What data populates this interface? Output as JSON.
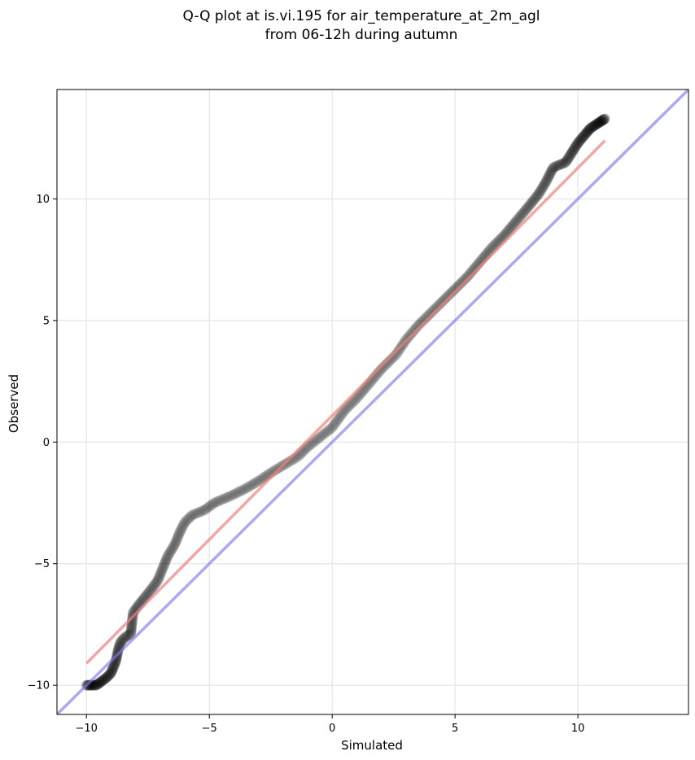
{
  "chart_data": {
    "type": "scatter",
    "title_line1": "Q-Q plot at is.vi.195 for air_temperature_at_2m_agl",
    "title_line2": "from 06-12h during autumn",
    "xlabel": "Simulated",
    "ylabel": "Observed",
    "xlim": [
      -11.2,
      14.5
    ],
    "ylim": [
      -11.2,
      14.5
    ],
    "xticks": [
      -10,
      -5,
      0,
      5,
      10
    ],
    "yticks": [
      -10,
      -5,
      0,
      5,
      10
    ],
    "x_tick_labels": [
      "−10",
      "−5",
      "0",
      "5",
      "10"
    ],
    "y_tick_labels": [
      "−10",
      "−5",
      "0",
      "5",
      "10"
    ],
    "grid": true,
    "colors": {
      "points": "#000000",
      "fit_line": "#f08080",
      "identity_line": "#7b7bef"
    },
    "fit_line": {
      "x": [
        -10.0,
        11.1
      ],
      "y": [
        -9.1,
        12.4
      ]
    },
    "identity_line": {
      "x": [
        -11.2,
        14.5
      ],
      "y": [
        -11.2,
        14.5
      ]
    },
    "quantile_control_points": [
      [
        -10.0,
        -10.0
      ],
      [
        -9.6,
        -10.0
      ],
      [
        -9.2,
        -9.7
      ],
      [
        -9.0,
        -9.5
      ],
      [
        -8.8,
        -9.0
      ],
      [
        -8.7,
        -8.5
      ],
      [
        -8.6,
        -8.2
      ],
      [
        -8.4,
        -8.0
      ],
      [
        -8.2,
        -7.9
      ],
      [
        -8.1,
        -7.0
      ],
      [
        -7.8,
        -6.6
      ],
      [
        -7.4,
        -6.1
      ],
      [
        -7.1,
        -5.7
      ],
      [
        -6.9,
        -5.2
      ],
      [
        -6.7,
        -4.7
      ],
      [
        -6.4,
        -4.2
      ],
      [
        -6.2,
        -3.7
      ],
      [
        -6.0,
        -3.3
      ],
      [
        -5.7,
        -3.0
      ],
      [
        -5.2,
        -2.8
      ],
      [
        -4.8,
        -2.5
      ],
      [
        -4.1,
        -2.2
      ],
      [
        -3.5,
        -1.9
      ],
      [
        -3.0,
        -1.6
      ],
      [
        -2.4,
        -1.2
      ],
      [
        -1.9,
        -0.9
      ],
      [
        -1.4,
        -0.6
      ],
      [
        -1.0,
        -0.2
      ],
      [
        -0.5,
        0.2
      ],
      [
        0.0,
        0.6
      ],
      [
        0.5,
        1.3
      ],
      [
        1.0,
        1.8
      ],
      [
        1.5,
        2.4
      ],
      [
        2.0,
        3.0
      ],
      [
        2.6,
        3.6
      ],
      [
        3.0,
        4.2
      ],
      [
        3.5,
        4.8
      ],
      [
        4.0,
        5.3
      ],
      [
        4.5,
        5.8
      ],
      [
        5.0,
        6.3
      ],
      [
        5.5,
        6.8
      ],
      [
        6.0,
        7.4
      ],
      [
        6.5,
        8.0
      ],
      [
        7.0,
        8.5
      ],
      [
        7.5,
        9.1
      ],
      [
        8.0,
        9.7
      ],
      [
        8.4,
        10.2
      ],
      [
        8.7,
        10.7
      ],
      [
        9.0,
        11.3
      ],
      [
        9.5,
        11.5
      ],
      [
        10.0,
        12.3
      ],
      [
        10.5,
        12.9
      ],
      [
        11.1,
        13.3
      ]
    ],
    "point_count": 600
  }
}
